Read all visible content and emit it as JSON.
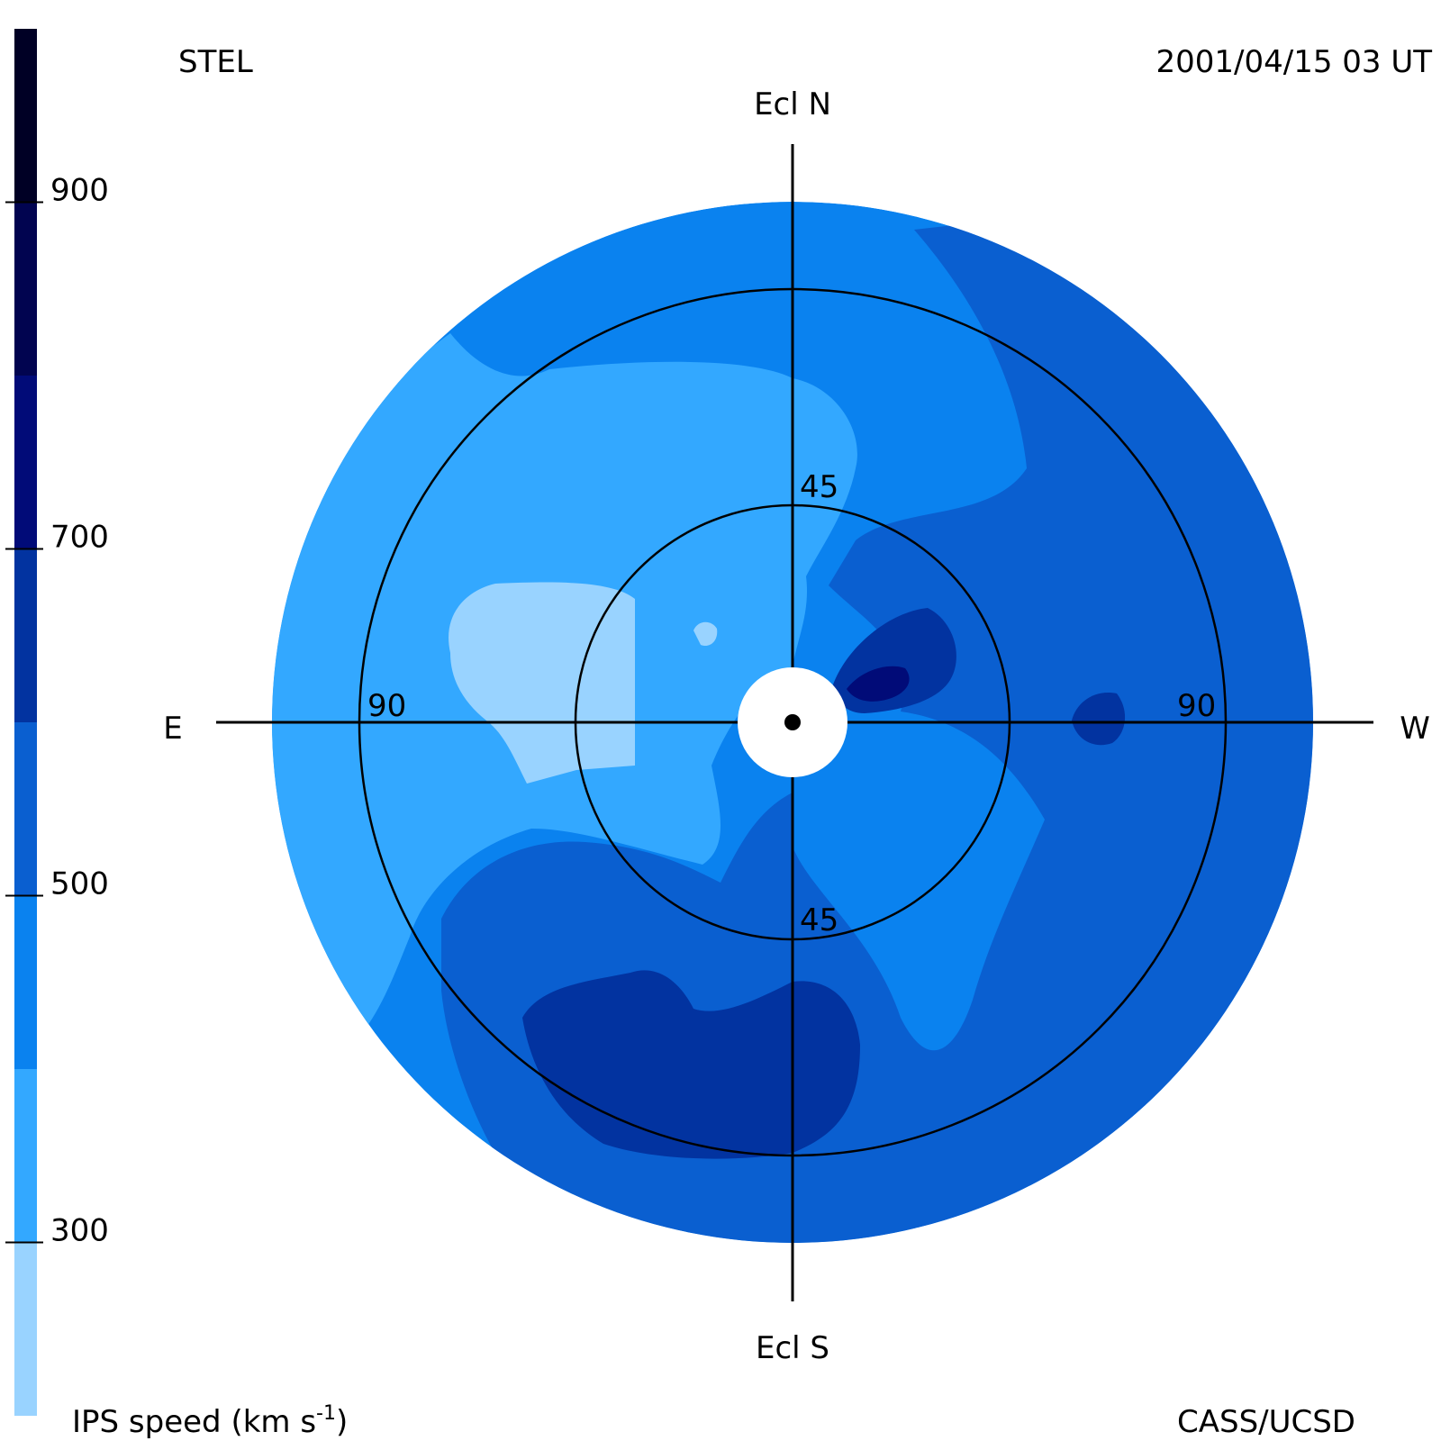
{
  "header": {
    "observatory": "STEL",
    "timestamp": "2001/04/15 03 UT"
  },
  "footer": {
    "colorbar_label": "IPS speed (km s",
    "colorbar_label_superscript": "-1",
    "colorbar_label_close": ")",
    "credit": "CASS/UCSD"
  },
  "chart_data": {
    "type": "heatmap",
    "projection": "polar sky map centered on the Sun",
    "orientation": {
      "top": "Ecl N",
      "bottom": "Ecl S",
      "left": "E",
      "right": "W"
    },
    "rings": [
      {
        "elongation_deg": 45,
        "labels": [
          "45",
          "45"
        ]
      },
      {
        "elongation_deg": 90,
        "labels": [
          "90",
          "90"
        ]
      }
    ],
    "colorbar": {
      "quantity": "IPS speed",
      "units": "km s-1",
      "range": [
        200,
        1000
      ],
      "ticks": [
        300,
        500,
        700,
        900
      ],
      "tick_labels": [
        "300",
        "500",
        "700",
        "900"
      ],
      "bins": [
        {
          "from": 200,
          "to": 300,
          "color": "#99d3ff"
        },
        {
          "from": 300,
          "to": 400,
          "color": "#33a8ff"
        },
        {
          "from": 400,
          "to": 500,
          "color": "#0a82ef"
        },
        {
          "from": 500,
          "to": 600,
          "color": "#0a5fd0"
        },
        {
          "from": 600,
          "to": 700,
          "color": "#0233a0"
        },
        {
          "from": 700,
          "to": 800,
          "color": "#010b78"
        },
        {
          "from": 800,
          "to": 900,
          "color": "#010450"
        },
        {
          "from": 900,
          "to": 1000,
          "color": "#000025"
        }
      ]
    },
    "regions": [
      {
        "area": "outer rim, north-west",
        "speed_range": [
          400,
          500
        ]
      },
      {
        "area": "north-east and east",
        "speed_range": [
          300,
          400
        ]
      },
      {
        "area": "east near 90 deg",
        "speed_range": [
          200,
          300
        ]
      },
      {
        "area": "west half",
        "speed_range": [
          500,
          600
        ]
      },
      {
        "area": "south-south-east band",
        "speed_range": [
          600,
          700
        ]
      },
      {
        "area": "just north-west of Sun",
        "speed_range": [
          700,
          800
        ]
      },
      {
        "area": "west near 70 deg",
        "speed_range": [
          600,
          700
        ]
      }
    ]
  }
}
